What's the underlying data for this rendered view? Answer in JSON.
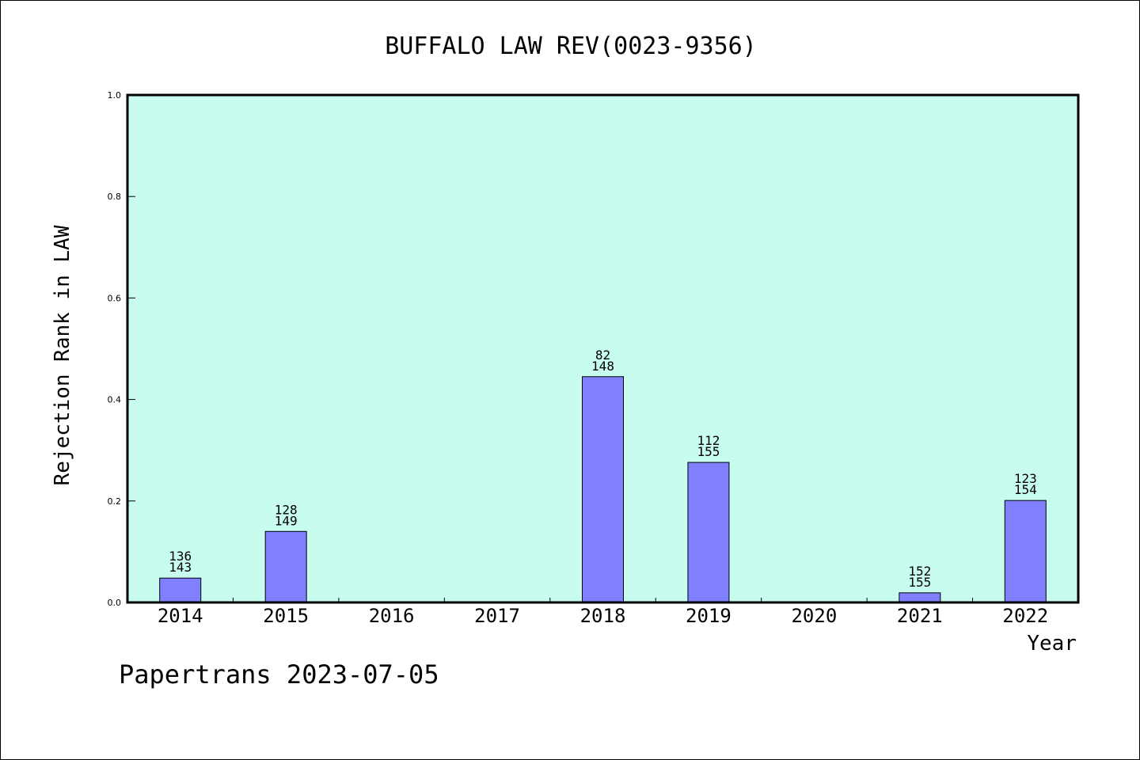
{
  "chart_data": {
    "type": "bar",
    "title": "BUFFALO LAW REV(0023-9356)",
    "xlabel": "Year",
    "ylabel": "Rejection Rank in LAW",
    "categories": [
      "2014",
      "2015",
      "2016",
      "2017",
      "2018",
      "2019",
      "2020",
      "2021",
      "2022"
    ],
    "values": [
      0.048,
      0.14,
      null,
      null,
      0.445,
      0.276,
      null,
      0.019,
      0.201
    ],
    "labels_top": [
      "136",
      "128",
      "",
      "",
      "82",
      "112",
      "",
      "152",
      "123"
    ],
    "labels_bottom": [
      "143",
      "149",
      "",
      "",
      "148",
      "155",
      "",
      "155",
      "154"
    ],
    "ylim": [
      0,
      1.0
    ],
    "yticks": [
      "0.0",
      "0.2",
      "0.4",
      "0.6",
      "0.8",
      "1.0"
    ],
    "plot_background": "#c8fcee",
    "bar_color": "#8080ff",
    "grid": false
  },
  "footer": "Papertrans 2023-07-05"
}
